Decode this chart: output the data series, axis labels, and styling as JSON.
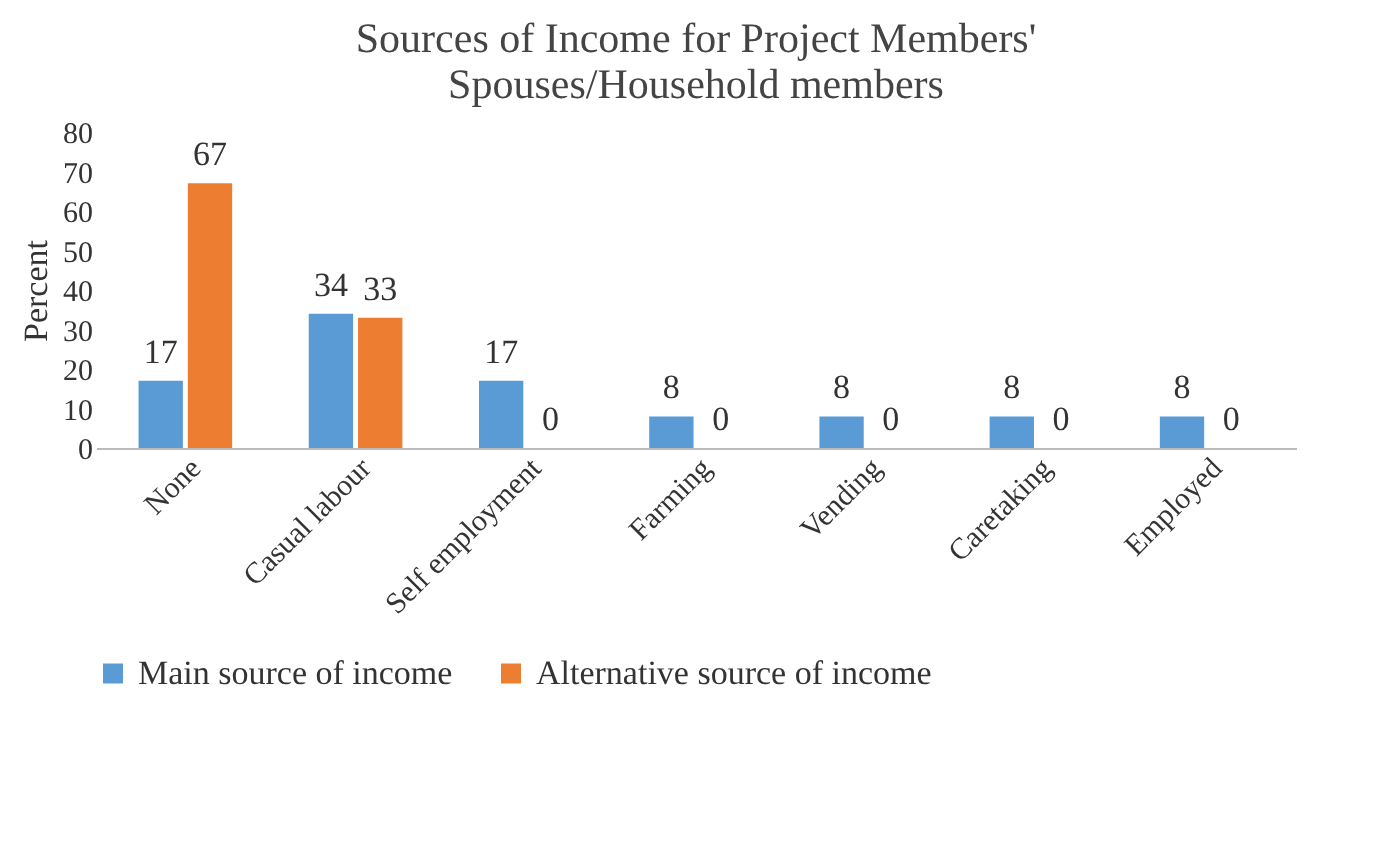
{
  "chart_data": {
    "type": "bar",
    "title": "Sources of Income for Project Members' Spouses/Household members",
    "ylabel": "Percent",
    "categories": [
      "None",
      "Casual labour",
      "Self employment",
      "Farming",
      "Vending",
      "Caretaking",
      "Employed"
    ],
    "series": [
      {
        "name": "Main source of income",
        "color": "#5b9bd5",
        "values": [
          17,
          34,
          17,
          8,
          8,
          8,
          8
        ]
      },
      {
        "name": "Alternative source of income",
        "color": "#ed7d31",
        "values": [
          67,
          33,
          0,
          0,
          0,
          0,
          0
        ]
      }
    ],
    "ylim": [
      0,
      80
    ],
    "yticks": [
      0,
      10,
      20,
      30,
      40,
      50,
      60,
      70,
      80
    ],
    "grid": false,
    "legend": "bottom",
    "data_labels": true
  }
}
